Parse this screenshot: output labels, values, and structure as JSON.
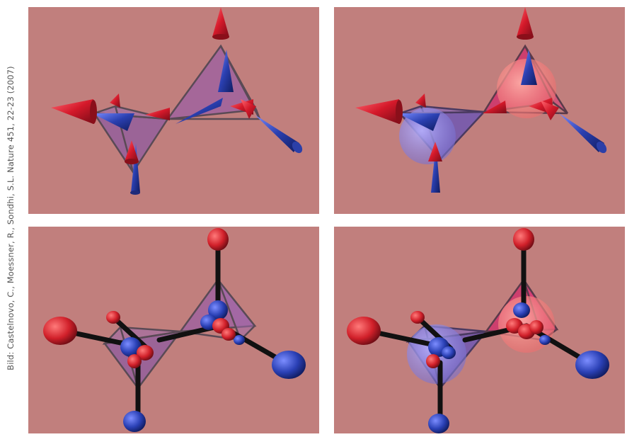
{
  "image": {
    "credit": "Bild: Castelnovo, C., Moessner, R., Sondhi, S.L. Nature 451, 22-23 (2007)"
  },
  "panels": [
    {
      "name": "top-left",
      "representation": "arrow-spins"
    },
    {
      "name": "top-right",
      "representation": "arrow-spins-with-charges"
    },
    {
      "name": "bottom-left",
      "representation": "dumbbell-dipoles"
    },
    {
      "name": "bottom-right",
      "representation": "dumbbell-dipoles-with-charges"
    }
  ],
  "colors": {
    "background": "#c17f7d",
    "north_red": "#d8202c",
    "south_blue": "#2a3fa8",
    "tetra_purple": "#8e5ba0",
    "tetra_red": "#c23a5a",
    "monopole_blue": "#8a84d6",
    "monopole_red": "#f08a8a"
  }
}
